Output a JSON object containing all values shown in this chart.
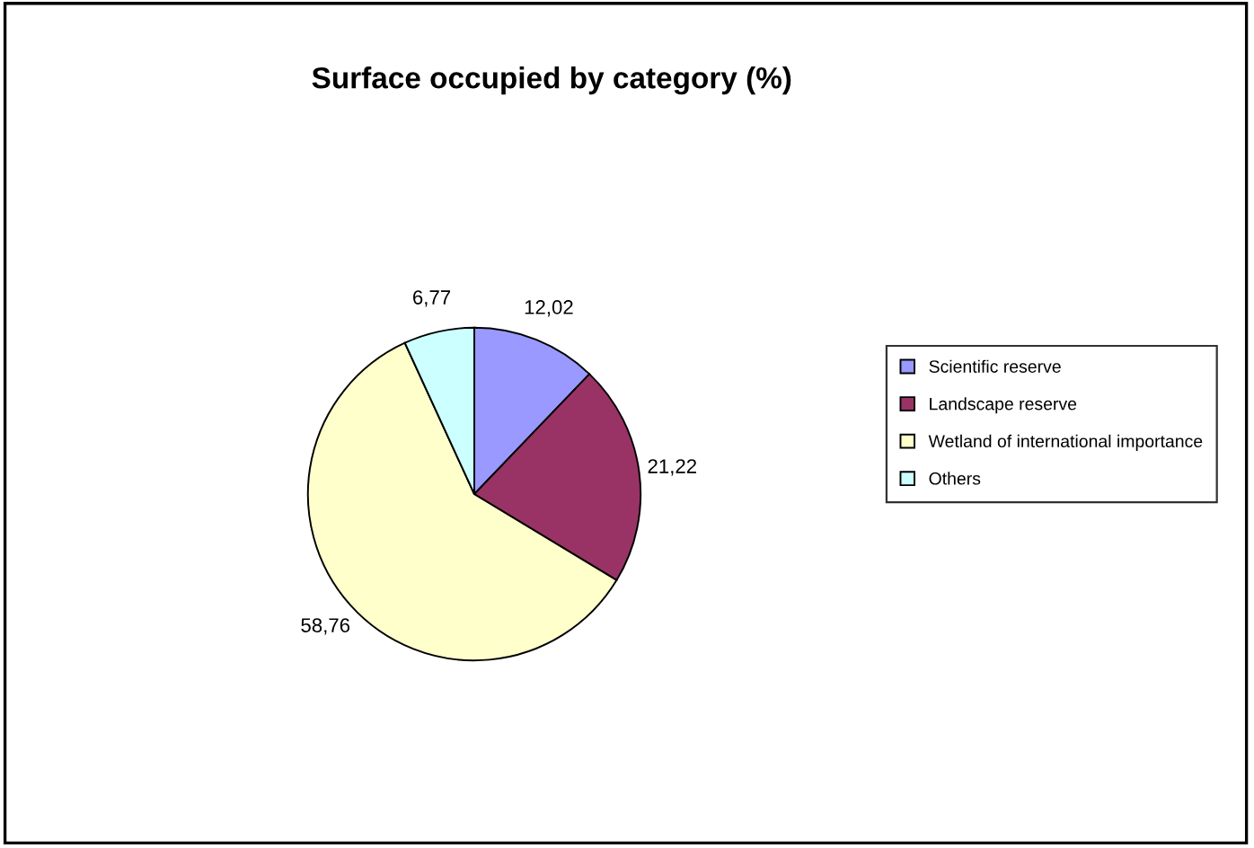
{
  "chart_data": {
    "type": "pie",
    "title": "Surface occupied by category (%)",
    "categories": [
      "Scientific reserve",
      "Landscape reserve",
      "Wetland of international importance",
      "Others"
    ],
    "values": [
      12.02,
      21.22,
      58.76,
      6.77
    ],
    "value_labels": [
      "12,02",
      "21,22",
      "58,76",
      "6,77"
    ],
    "colors": [
      "#9999ff",
      "#993366",
      "#ffffcc",
      "#ccffff"
    ],
    "legend": "right"
  }
}
